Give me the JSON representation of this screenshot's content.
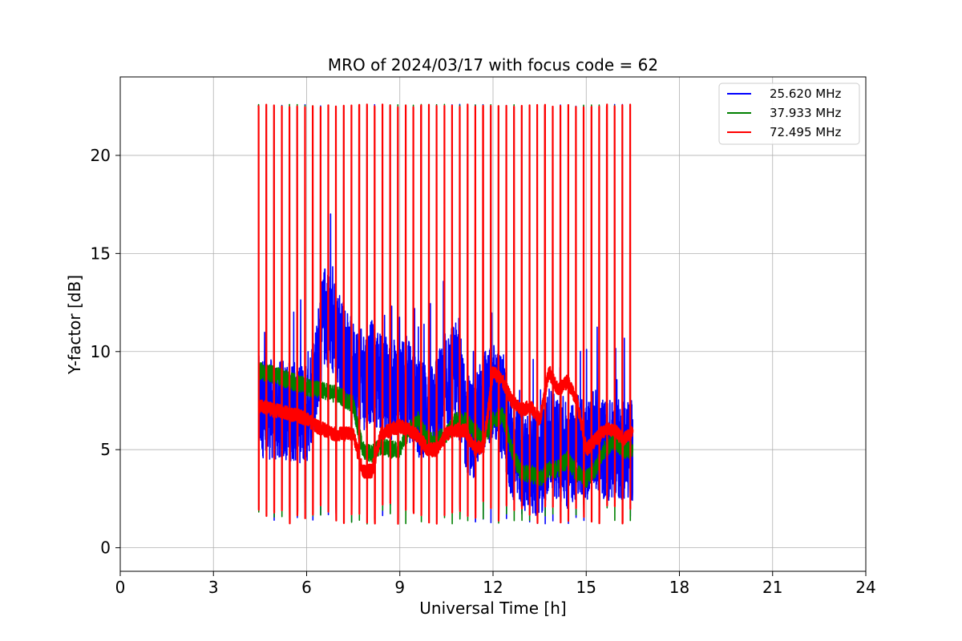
{
  "chart_data": {
    "type": "line",
    "title": "MRO of 2024/03/17 with focus code = 62",
    "xlabel": "Universal Time [h]",
    "ylabel": "Y-factor [dB]",
    "xlim": [
      0,
      24
    ],
    "ylim": [
      -1.2,
      24
    ],
    "xticks": [
      0,
      3,
      6,
      9,
      12,
      15,
      18,
      21,
      24
    ],
    "yticks": [
      0,
      5,
      10,
      15,
      20
    ],
    "grid": true,
    "legend_position": "top-right",
    "calibration": {
      "start_h": 4.45,
      "end_h": 16.5,
      "period_h": 0.2492,
      "peak_db": 22.6
    },
    "series": [
      {
        "name": "25.620 MHz",
        "color": "#0000ff",
        "x": [
          4.5,
          5.0,
          5.5,
          6.0,
          6.3,
          6.6,
          6.9,
          7.2,
          7.5,
          7.8,
          8.1,
          8.4,
          8.7,
          9.0,
          9.3,
          9.6,
          9.9,
          10.2,
          10.5,
          10.8,
          11.1,
          11.4,
          11.7,
          12.0,
          12.3,
          12.6,
          12.9,
          13.2,
          13.5,
          13.8,
          14.1,
          14.4,
          14.7,
          15.0,
          15.3,
          15.6,
          15.9,
          16.2,
          16.5
        ],
        "y": [
          7.2,
          7.0,
          7.0,
          6.8,
          9.0,
          12.0,
          11.0,
          10.0,
          9.0,
          8.5,
          9.0,
          8.5,
          8.0,
          8.0,
          8.0,
          7.0,
          7.0,
          7.5,
          8.0,
          9.0,
          6.5,
          6.0,
          7.5,
          8.0,
          7.0,
          5.0,
          4.5,
          4.5,
          4.0,
          5.5,
          5.0,
          4.5,
          5.0,
          5.0,
          5.5,
          5.0,
          5.0,
          5.0,
          5.0
        ]
      },
      {
        "name": "37.933 MHz",
        "color": "#008000",
        "x": [
          4.5,
          5.0,
          5.5,
          6.0,
          6.5,
          7.0,
          7.5,
          7.8,
          8.1,
          8.4,
          8.7,
          9.0,
          9.3,
          9.6,
          9.9,
          10.2,
          10.5,
          10.8,
          11.1,
          11.4,
          11.7,
          12.0,
          12.3,
          12.6,
          12.9,
          13.2,
          13.5,
          13.8,
          14.1,
          14.4,
          14.7,
          15.0,
          15.3,
          15.6,
          15.9,
          16.2,
          16.5
        ],
        "y": [
          9.0,
          8.8,
          8.5,
          8.2,
          8.0,
          7.8,
          7.3,
          5.0,
          4.8,
          5.2,
          5.0,
          5.0,
          6.0,
          6.5,
          5.5,
          5.5,
          5.8,
          6.5,
          6.5,
          6.0,
          5.5,
          6.5,
          6.8,
          5.0,
          3.8,
          3.8,
          3.5,
          4.0,
          4.0,
          4.5,
          3.8,
          3.5,
          4.0,
          5.0,
          5.5,
          5.0,
          5.0
        ]
      },
      {
        "name": "72.495 MHz",
        "color": "#ff0000",
        "x": [
          4.5,
          5.0,
          5.5,
          6.0,
          6.3,
          6.6,
          6.9,
          7.2,
          7.5,
          7.8,
          8.1,
          8.4,
          8.7,
          9.0,
          9.3,
          9.6,
          9.9,
          10.2,
          10.5,
          10.8,
          11.1,
          11.4,
          11.7,
          12.0,
          12.3,
          12.6,
          12.9,
          13.2,
          13.5,
          13.8,
          14.1,
          14.4,
          14.7,
          15.0,
          15.3,
          15.6,
          15.9,
          16.2,
          16.5
        ],
        "y": [
          7.2,
          7.0,
          6.8,
          6.6,
          6.2,
          6.0,
          5.8,
          5.8,
          5.8,
          3.9,
          3.9,
          5.8,
          6.0,
          6.2,
          6.0,
          5.7,
          5.0,
          5.0,
          5.8,
          6.0,
          6.0,
          5.0,
          5.2,
          9.0,
          8.5,
          7.5,
          7.0,
          7.2,
          6.5,
          9.0,
          8.0,
          8.5,
          7.5,
          5.0,
          5.5,
          6.0,
          6.0,
          5.5,
          6.0
        ]
      }
    ]
  }
}
